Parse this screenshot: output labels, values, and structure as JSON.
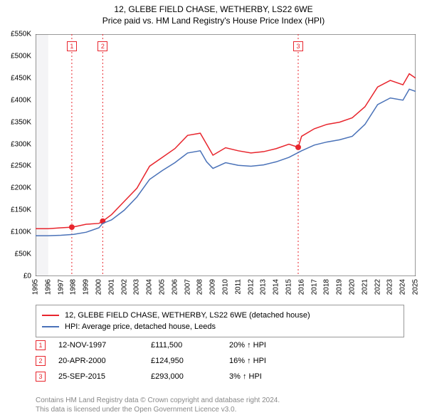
{
  "header": {
    "title": "12, GLEBE FIELD CHASE, WETHERBY, LS22 6WE",
    "subtitle": "Price paid vs. HM Land Registry's House Price Index (HPI)"
  },
  "chart": {
    "type": "line",
    "background_color": "#ffffff",
    "plot_background_color": "#ffffff",
    "y": {
      "min": 0,
      "max": 550000,
      "step": 50000,
      "ticks": [
        "£0",
        "£50K",
        "£100K",
        "£150K",
        "£200K",
        "£250K",
        "£300K",
        "£350K",
        "£400K",
        "£450K",
        "£500K",
        "£550K"
      ],
      "tick_fontsize": 10,
      "tick_color": "#000000",
      "grid_color": "#ffffff"
    },
    "x": {
      "min": 1995,
      "max": 2025,
      "step": 1,
      "ticks": [
        "1995",
        "1996",
        "1997",
        "1998",
        "1999",
        "2000",
        "2001",
        "2002",
        "2003",
        "2004",
        "2005",
        "2006",
        "2007",
        "2008",
        "2009",
        "2010",
        "2011",
        "2012",
        "2013",
        "2014",
        "2015",
        "2016",
        "2017",
        "2018",
        "2019",
        "2020",
        "2021",
        "2022",
        "2023",
        "2024",
        "2025"
      ],
      "tick_fontsize": 10,
      "tick_color": "#000000",
      "tick_rotation": -90
    },
    "band": {
      "start_year": 1995,
      "end_year": 1996,
      "fill": "#f4f4f6"
    },
    "axis_color": "#333333",
    "series": [
      {
        "name": "property",
        "label": "12, GLEBE FIELD CHASE, WETHERBY, LS22 6WE (detached house)",
        "color": "#e8252d",
        "line_width": 1.5,
        "points": [
          [
            1995,
            108000
          ],
          [
            1996,
            108000
          ],
          [
            1997,
            110000
          ],
          [
            1997.86,
            111500
          ],
          [
            1998,
            112000
          ],
          [
            1999,
            118000
          ],
          [
            2000,
            120000
          ],
          [
            2000.3,
            124950
          ],
          [
            2001,
            140000
          ],
          [
            2002,
            170000
          ],
          [
            2003,
            200000
          ],
          [
            2004,
            250000
          ],
          [
            2005,
            270000
          ],
          [
            2006,
            290000
          ],
          [
            2007,
            320000
          ],
          [
            2008,
            325000
          ],
          [
            2008.5,
            300000
          ],
          [
            2009,
            275000
          ],
          [
            2010,
            292000
          ],
          [
            2011,
            285000
          ],
          [
            2012,
            280000
          ],
          [
            2013,
            283000
          ],
          [
            2014,
            290000
          ],
          [
            2015,
            300000
          ],
          [
            2015.73,
            293000
          ],
          [
            2016,
            318000
          ],
          [
            2017,
            335000
          ],
          [
            2018,
            345000
          ],
          [
            2019,
            350000
          ],
          [
            2020,
            360000
          ],
          [
            2021,
            385000
          ],
          [
            2022,
            430000
          ],
          [
            2023,
            445000
          ],
          [
            2024,
            435000
          ],
          [
            2024.5,
            460000
          ],
          [
            2025,
            450000
          ]
        ]
      },
      {
        "name": "hpi",
        "label": "HPI: Average price, detached house, Leeds",
        "color": "#4a72b8",
        "line_width": 1.5,
        "points": [
          [
            1995,
            92000
          ],
          [
            1996,
            92000
          ],
          [
            1997,
            93000
          ],
          [
            1998,
            95000
          ],
          [
            1999,
            100000
          ],
          [
            2000,
            110000
          ],
          [
            2000.3,
            120000
          ],
          [
            2001,
            128000
          ],
          [
            2002,
            150000
          ],
          [
            2003,
            180000
          ],
          [
            2004,
            220000
          ],
          [
            2005,
            240000
          ],
          [
            2006,
            258000
          ],
          [
            2007,
            280000
          ],
          [
            2008,
            285000
          ],
          [
            2008.5,
            260000
          ],
          [
            2009,
            245000
          ],
          [
            2010,
            258000
          ],
          [
            2011,
            252000
          ],
          [
            2012,
            250000
          ],
          [
            2013,
            253000
          ],
          [
            2014,
            260000
          ],
          [
            2015,
            270000
          ],
          [
            2016,
            285000
          ],
          [
            2017,
            298000
          ],
          [
            2018,
            305000
          ],
          [
            2019,
            310000
          ],
          [
            2020,
            318000
          ],
          [
            2021,
            345000
          ],
          [
            2022,
            390000
          ],
          [
            2023,
            405000
          ],
          [
            2024,
            400000
          ],
          [
            2024.5,
            425000
          ],
          [
            2025,
            420000
          ]
        ]
      }
    ],
    "event_markers": [
      {
        "n": "1",
        "year": 1997.86,
        "price": 111500,
        "line_color": "#e8252d",
        "box_border": "#e8252d"
      },
      {
        "n": "2",
        "year": 2000.3,
        "price": 124950,
        "line_color": "#e8252d",
        "box_border": "#e8252d"
      },
      {
        "n": "3",
        "year": 2015.73,
        "price": 293000,
        "line_color": "#e8252d",
        "box_border": "#e8252d"
      }
    ],
    "marker_style": {
      "radius": 3.5,
      "fill": "#e8252d",
      "stroke": "#ffffff"
    }
  },
  "legend": {
    "rows": [
      {
        "color": "#e8252d",
        "text": "12, GLEBE FIELD CHASE, WETHERBY, LS22 6WE (detached house)"
      },
      {
        "color": "#4a72b8",
        "text": "HPI: Average price, detached house, Leeds"
      }
    ]
  },
  "events_table": {
    "rows": [
      {
        "n": "1",
        "date": "12-NOV-1997",
        "price": "£111,500",
        "pct": "20% ↑ HPI"
      },
      {
        "n": "2",
        "date": "20-APR-2000",
        "price": "£124,950",
        "pct": "16% ↑ HPI"
      },
      {
        "n": "3",
        "date": "25-SEP-2015",
        "price": "£293,000",
        "pct": "3% ↑ HPI"
      }
    ]
  },
  "footnote": {
    "line1": "Contains HM Land Registry data © Crown copyright and database right 2024.",
    "line2": "This data is licensed under the Open Government Licence v3.0."
  }
}
